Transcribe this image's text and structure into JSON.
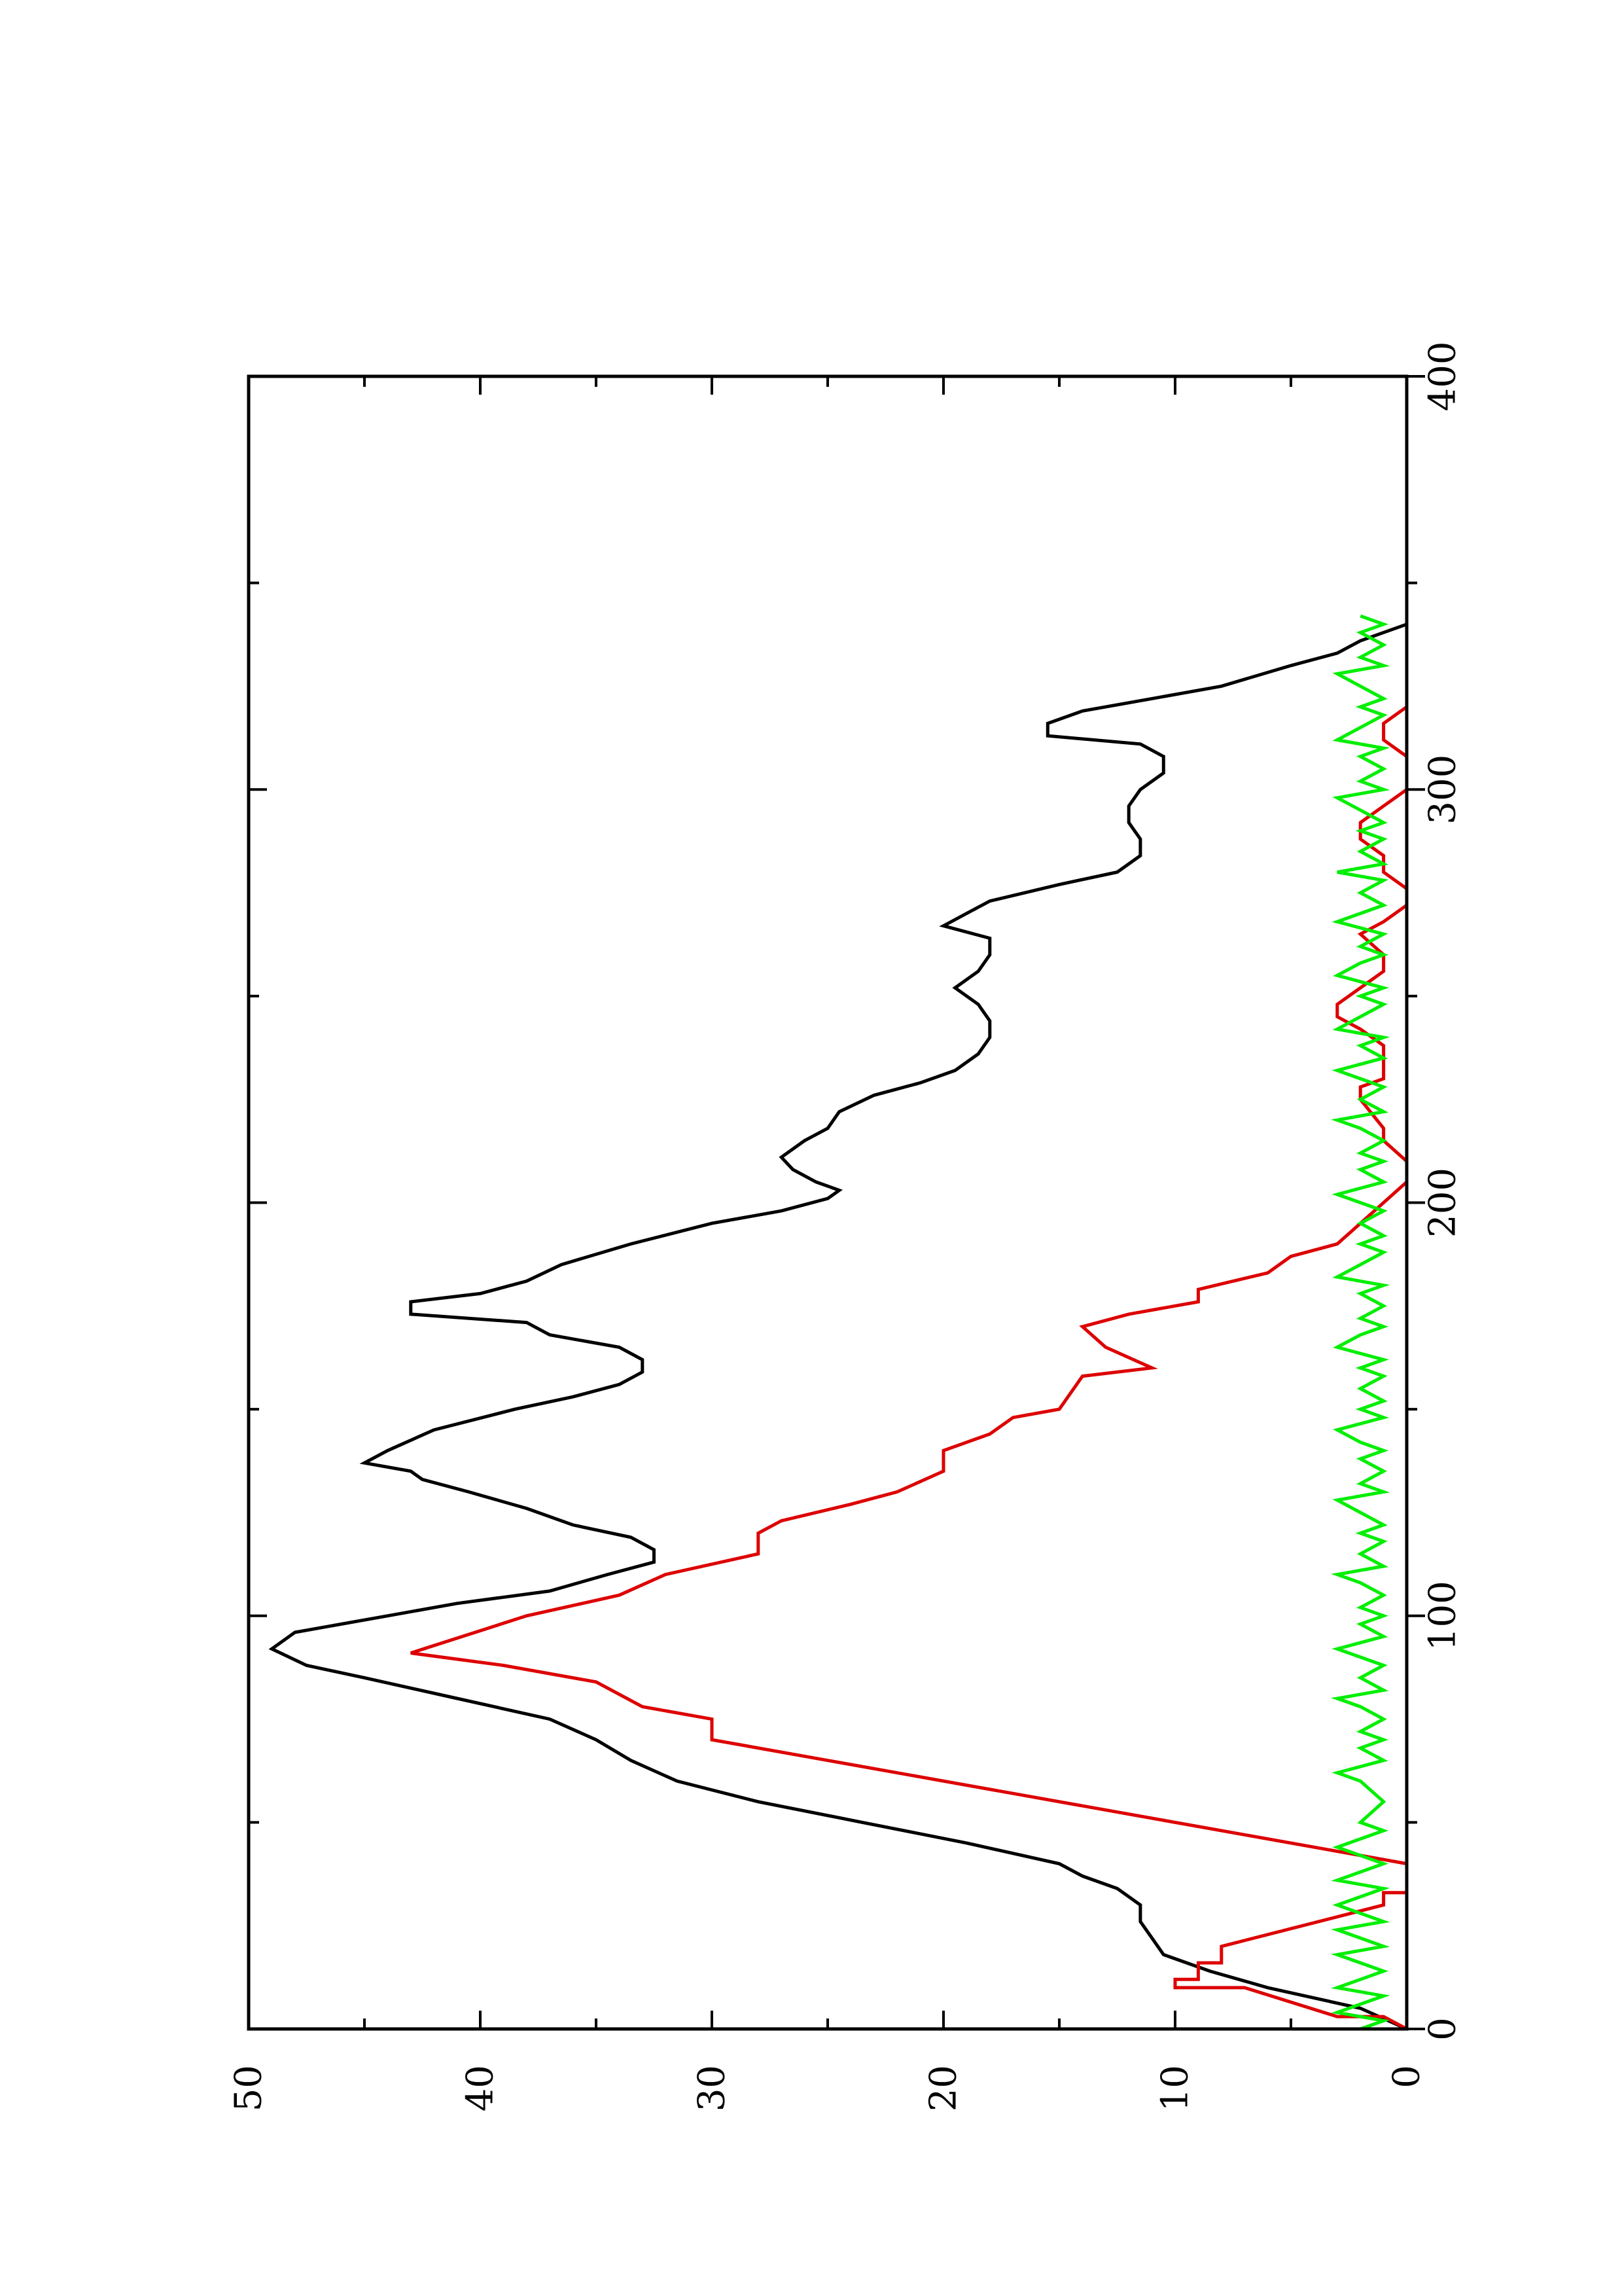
{
  "chart_data": {
    "type": "line",
    "orientation": "rotated-90-counterclockwise",
    "title": "",
    "xlabel": "",
    "ylabel": "",
    "xlim": [
      0,
      400
    ],
    "ylim": [
      0,
      50
    ],
    "xticks": [
      0,
      100,
      200,
      300,
      400
    ],
    "yticks": [
      0,
      10,
      20,
      30,
      40,
      50
    ],
    "xticklabels": [
      "0",
      "100",
      "200",
      "300",
      "400"
    ],
    "yticklabels": [
      "0",
      "10",
      "20",
      "30",
      "40",
      "50"
    ],
    "x_minor_ticks": [
      50,
      150,
      250,
      350
    ],
    "y_minor_ticks": [
      5,
      15,
      25,
      35,
      45
    ],
    "grid": false,
    "legend": "none",
    "series": [
      {
        "color": "#000000",
        "points": [
          [
            0,
            0
          ],
          [
            5,
            2
          ],
          [
            10,
            6
          ],
          [
            14,
            8.5
          ],
          [
            18,
            10.5
          ],
          [
            22,
            11
          ],
          [
            26,
            11.5
          ],
          [
            30,
            11.5
          ],
          [
            34,
            12.5
          ],
          [
            37,
            14
          ],
          [
            40,
            15
          ],
          [
            45,
            19
          ],
          [
            50,
            23.5
          ],
          [
            55,
            28
          ],
          [
            60,
            31.5
          ],
          [
            65,
            33.5
          ],
          [
            70,
            35
          ],
          [
            75,
            37
          ],
          [
            80,
            41
          ],
          [
            85,
            45
          ],
          [
            88,
            47.5
          ],
          [
            92,
            49
          ],
          [
            96,
            48
          ],
          [
            100,
            44
          ],
          [
            103,
            41
          ],
          [
            106,
            37
          ],
          [
            110,
            34.5
          ],
          [
            113,
            32.5
          ],
          [
            116,
            32.5
          ],
          [
            119,
            33.5
          ],
          [
            122,
            36
          ],
          [
            126,
            38
          ],
          [
            130,
            40.5
          ],
          [
            133,
            42.5
          ],
          [
            135,
            43
          ],
          [
            137,
            45
          ],
          [
            140,
            44
          ],
          [
            145,
            42
          ],
          [
            150,
            38.5
          ],
          [
            153,
            36
          ],
          [
            156,
            34
          ],
          [
            159,
            33
          ],
          [
            162,
            33
          ],
          [
            165,
            34
          ],
          [
            168,
            37
          ],
          [
            171,
            38
          ],
          [
            173,
            43
          ],
          [
            176,
            43
          ],
          [
            178,
            40
          ],
          [
            181,
            38
          ],
          [
            185,
            36.5
          ],
          [
            190,
            33.5
          ],
          [
            195,
            30
          ],
          [
            198,
            27
          ],
          [
            201,
            25
          ],
          [
            203,
            24.5
          ],
          [
            205,
            25.5
          ],
          [
            208,
            26.5
          ],
          [
            211,
            27
          ],
          [
            215,
            26
          ],
          [
            218,
            25
          ],
          [
            222,
            24.5
          ],
          [
            226,
            23
          ],
          [
            229,
            21
          ],
          [
            232,
            19.5
          ],
          [
            236,
            18.5
          ],
          [
            240,
            18
          ],
          [
            244,
            18
          ],
          [
            248,
            18.5
          ],
          [
            252,
            19.5
          ],
          [
            256,
            18.5
          ],
          [
            260,
            18
          ],
          [
            264,
            18
          ],
          [
            267,
            20
          ],
          [
            270,
            19
          ],
          [
            273,
            18
          ],
          [
            277,
            15
          ],
          [
            280,
            12.5
          ],
          [
            284,
            11.5
          ],
          [
            288,
            11.5
          ],
          [
            292,
            12
          ],
          [
            296,
            12
          ],
          [
            300,
            11.5
          ],
          [
            304,
            10.5
          ],
          [
            308,
            10.5
          ],
          [
            311,
            11.5
          ],
          [
            313,
            15.5
          ],
          [
            316,
            15.5
          ],
          [
            319,
            14
          ],
          [
            322,
            11
          ],
          [
            325,
            8
          ],
          [
            330,
            5
          ],
          [
            333,
            3
          ],
          [
            336,
            2
          ],
          [
            340,
            0
          ]
        ]
      },
      {
        "color": "#dd0000",
        "points": [
          [
            0,
            0
          ],
          [
            3,
            1
          ],
          [
            3,
            3
          ],
          [
            10,
            7
          ],
          [
            10,
            10
          ],
          [
            12,
            10
          ],
          [
            12,
            9
          ],
          [
            16,
            9
          ],
          [
            16,
            8
          ],
          [
            20,
            8
          ],
          [
            30,
            1
          ],
          [
            33,
            1
          ],
          [
            33,
            0
          ],
          [
            40,
            0
          ],
          [
            70,
            30
          ],
          [
            75,
            30
          ],
          [
            78,
            33
          ],
          [
            84,
            35
          ],
          [
            88,
            39
          ],
          [
            91,
            43
          ],
          [
            100,
            38
          ],
          [
            105,
            34
          ],
          [
            110,
            32
          ],
          [
            115,
            28
          ],
          [
            120,
            28
          ],
          [
            123,
            27
          ],
          [
            127,
            24
          ],
          [
            130,
            22
          ],
          [
            135,
            20
          ],
          [
            140,
            20
          ],
          [
            144,
            18
          ],
          [
            148,
            17
          ],
          [
            150,
            15
          ],
          [
            158,
            14
          ],
          [
            160,
            11
          ],
          [
            165,
            13
          ],
          [
            170,
            14
          ],
          [
            173,
            12
          ],
          [
            176,
            9
          ],
          [
            179,
            9
          ],
          [
            183,
            6
          ],
          [
            187,
            5
          ],
          [
            190,
            3
          ],
          [
            195,
            2
          ],
          [
            200,
            1
          ],
          [
            205,
            0
          ],
          [
            210,
            0
          ],
          [
            215,
            1
          ],
          [
            218,
            1
          ],
          [
            225,
            2
          ],
          [
            228,
            2
          ],
          [
            230,
            1
          ],
          [
            234,
            1
          ],
          [
            238,
            1
          ],
          [
            242,
            2
          ],
          [
            245,
            3
          ],
          [
            248,
            3
          ],
          [
            252,
            2
          ],
          [
            256,
            1
          ],
          [
            260,
            1
          ],
          [
            265,
            2
          ],
          [
            268,
            1
          ],
          [
            272,
            0
          ],
          [
            276,
            0
          ],
          [
            280,
            1
          ],
          [
            284,
            1
          ],
          [
            288,
            2
          ],
          [
            292,
            2
          ],
          [
            296,
            1
          ],
          [
            300,
            0
          ],
          [
            304,
            0
          ],
          [
            308,
            0
          ],
          [
            312,
            1
          ],
          [
            316,
            1
          ],
          [
            320,
            0
          ],
          [
            325,
            0
          ],
          [
            330,
            0
          ]
        ]
      },
      {
        "color": "#00ee00",
        "points": [
          [
            0,
            2
          ],
          [
            2,
            1
          ],
          [
            4,
            3
          ],
          [
            6,
            2
          ],
          [
            8,
            1
          ],
          [
            10,
            3
          ],
          [
            12,
            2
          ],
          [
            14,
            1
          ],
          [
            16,
            2
          ],
          [
            18,
            3
          ],
          [
            20,
            1
          ],
          [
            22,
            2
          ],
          [
            24,
            3
          ],
          [
            26,
            1
          ],
          [
            28,
            2
          ],
          [
            30,
            3
          ],
          [
            32,
            2
          ],
          [
            34,
            1
          ],
          [
            36,
            3
          ],
          [
            38,
            2
          ],
          [
            40,
            1
          ],
          [
            42,
            2
          ],
          [
            44,
            3
          ],
          [
            46,
            2
          ],
          [
            48,
            1
          ],
          [
            50,
            2
          ],
          [
            55,
            1
          ],
          [
            60,
            2
          ],
          [
            62,
            3
          ],
          [
            65,
            1
          ],
          [
            68,
            2
          ],
          [
            70,
            1
          ],
          [
            72,
            2
          ],
          [
            75,
            1
          ],
          [
            78,
            2
          ],
          [
            80,
            3
          ],
          [
            82,
            1
          ],
          [
            85,
            2
          ],
          [
            88,
            1
          ],
          [
            90,
            2
          ],
          [
            92,
            3
          ],
          [
            95,
            1
          ],
          [
            98,
            2
          ],
          [
            100,
            1
          ],
          [
            102,
            2
          ],
          [
            105,
            1
          ],
          [
            108,
            2
          ],
          [
            110,
            3
          ],
          [
            112,
            1
          ],
          [
            115,
            2
          ],
          [
            118,
            1
          ],
          [
            120,
            2
          ],
          [
            122,
            1
          ],
          [
            125,
            2
          ],
          [
            128,
            3
          ],
          [
            130,
            1
          ],
          [
            132,
            2
          ],
          [
            135,
            1
          ],
          [
            138,
            2
          ],
          [
            140,
            1
          ],
          [
            142,
            2
          ],
          [
            145,
            3
          ],
          [
            148,
            1
          ],
          [
            150,
            2
          ],
          [
            152,
            1
          ],
          [
            155,
            2
          ],
          [
            158,
            1
          ],
          [
            160,
            2
          ],
          [
            162,
            1
          ],
          [
            165,
            3
          ],
          [
            168,
            2
          ],
          [
            170,
            1
          ],
          [
            172,
            2
          ],
          [
            175,
            1
          ],
          [
            178,
            2
          ],
          [
            180,
            1
          ],
          [
            182,
            3
          ],
          [
            185,
            2
          ],
          [
            188,
            1
          ],
          [
            190,
            2
          ],
          [
            192,
            1
          ],
          [
            195,
            2
          ],
          [
            198,
            1
          ],
          [
            200,
            2
          ],
          [
            202,
            3
          ],
          [
            205,
            1
          ],
          [
            208,
            2
          ],
          [
            210,
            1
          ],
          [
            212,
            2
          ],
          [
            215,
            1
          ],
          [
            218,
            2
          ],
          [
            220,
            3
          ],
          [
            222,
            1
          ],
          [
            225,
            2
          ],
          [
            228,
            1
          ],
          [
            230,
            2
          ],
          [
            232,
            3
          ],
          [
            235,
            1
          ],
          [
            238,
            2
          ],
          [
            240,
            1
          ],
          [
            242,
            3
          ],
          [
            245,
            2
          ],
          [
            248,
            1
          ],
          [
            250,
            2
          ],
          [
            252,
            1
          ],
          [
            255,
            3
          ],
          [
            258,
            2
          ],
          [
            260,
            1
          ],
          [
            262,
            2
          ],
          [
            265,
            1
          ],
          [
            268,
            3
          ],
          [
            270,
            2
          ],
          [
            272,
            1
          ],
          [
            275,
            2
          ],
          [
            278,
            1
          ],
          [
            280,
            3
          ],
          [
            282,
            1
          ],
          [
            285,
            2
          ],
          [
            288,
            1
          ],
          [
            290,
            2
          ],
          [
            292,
            1
          ],
          [
            295,
            2
          ],
          [
            298,
            3
          ],
          [
            300,
            1
          ],
          [
            302,
            2
          ],
          [
            305,
            1
          ],
          [
            308,
            2
          ],
          [
            310,
            1
          ],
          [
            312,
            3
          ],
          [
            315,
            2
          ],
          [
            318,
            1
          ],
          [
            320,
            2
          ],
          [
            322,
            1
          ],
          [
            325,
            2
          ],
          [
            328,
            3
          ],
          [
            330,
            1
          ],
          [
            332,
            2
          ],
          [
            335,
            1
          ],
          [
            338,
            2
          ],
          [
            340,
            1
          ],
          [
            342,
            2
          ]
        ]
      }
    ]
  }
}
